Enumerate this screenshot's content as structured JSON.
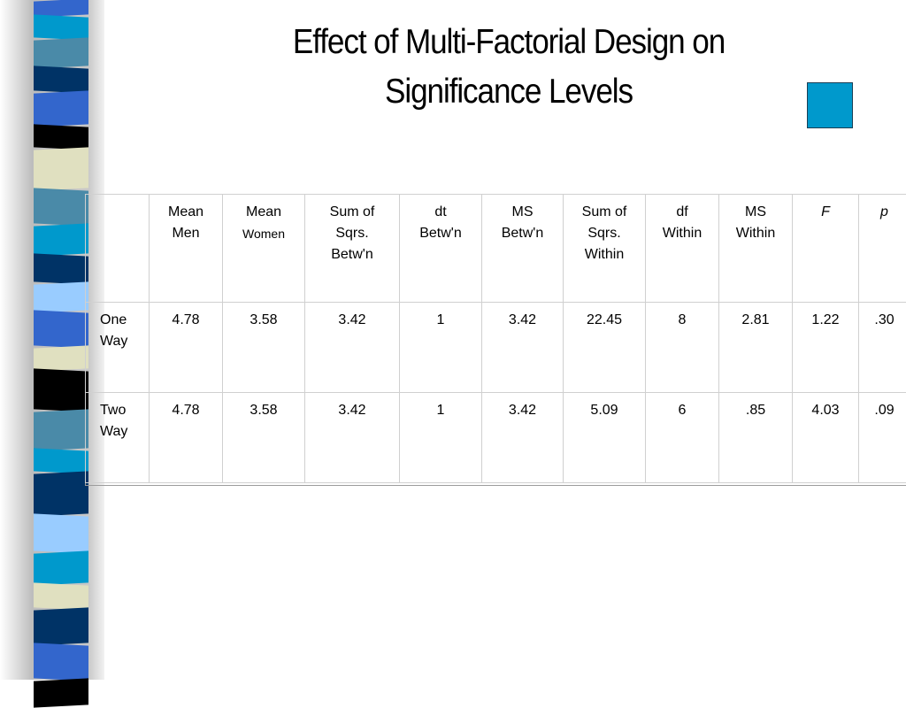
{
  "title_lines": [
    "Effect of Multi-Factorial Design on",
    "Significance Levels"
  ],
  "colors": {
    "accent_square": "#0099cc",
    "stripes": [
      "#3366cc",
      "#0099cc",
      "#4a8aa8",
      "#003366",
      "#3366cc",
      "#000000",
      "#e0e0c0",
      "#4a8aa8",
      "#0099cc",
      "#003366",
      "#99ccff",
      "#3366cc",
      "#e0e0c0",
      "#000000",
      "#4a8aa8",
      "#0099cc",
      "#003366",
      "#99ccff",
      "#0099cc",
      "#e0e0c0",
      "#003366",
      "#3366cc",
      "#000000"
    ]
  },
  "table": {
    "headers": [
      [
        "Mean",
        "Men"
      ],
      [
        "Mean",
        "Women"
      ],
      [
        "Sum of",
        "Sqrs.",
        "Betw'n"
      ],
      [
        "dt",
        "Betw'n"
      ],
      [
        "MS",
        "Betw'n"
      ],
      [
        "Sum of",
        "Sqrs.",
        "Within"
      ],
      [
        "df",
        "Within"
      ],
      [
        "MS",
        "Within"
      ],
      [
        "F"
      ],
      [
        "p"
      ]
    ],
    "rows": [
      {
        "label": [
          "One",
          "Way"
        ],
        "values": [
          "4.78",
          "3.58",
          "3.42",
          "1",
          "3.42",
          "22.45",
          "8",
          "2.81",
          "1.22",
          ".30"
        ]
      },
      {
        "label": [
          "Two",
          "Way"
        ],
        "values": [
          "4.78",
          "3.58",
          "3.42",
          "1",
          "3.42",
          "5.09",
          "6",
          ".85",
          "4.03",
          ".09"
        ]
      }
    ]
  }
}
